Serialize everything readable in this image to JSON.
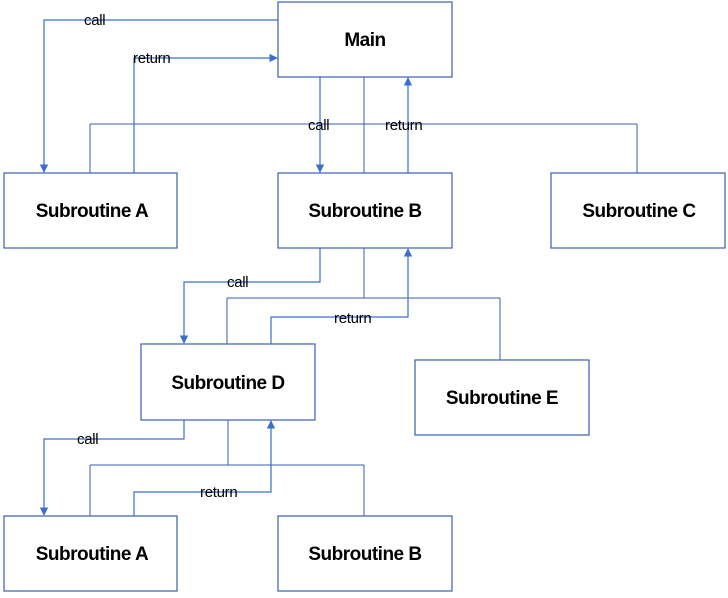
{
  "nodes": {
    "main": "Main",
    "sub_a_top": "Subroutine A",
    "sub_b_mid": "Subroutine B",
    "sub_c": "Subroutine C",
    "sub_d": "Subroutine D",
    "sub_e": "Subroutine E",
    "sub_a_bottom": "Subroutine A",
    "sub_b_bottom": "Subroutine B"
  },
  "edges": {
    "call_label": "call",
    "return_label": "return"
  },
  "colors": {
    "arrow": "#3a6fd0",
    "box_border": "#3a5fb0"
  }
}
